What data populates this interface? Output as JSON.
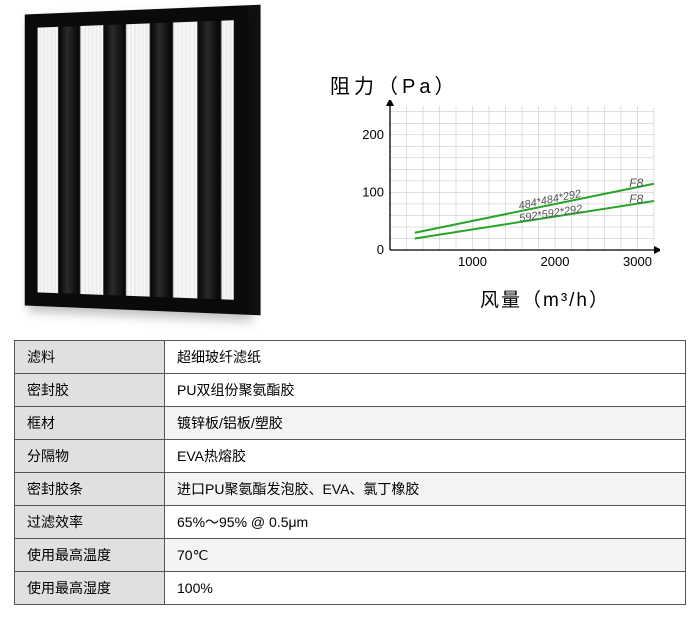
{
  "product_illustration": "v-bank-air-filter",
  "chart": {
    "type": "line",
    "title": "阻力（Pa）",
    "xaxis_label": "风量（m³/h）",
    "xlim": [
      0,
      3200
    ],
    "ylim": [
      0,
      250
    ],
    "xticks": [
      1000,
      2000,
      3000
    ],
    "yticks": [
      0,
      100,
      200
    ],
    "xminor_step": 200,
    "yminor_step": 20,
    "axis_color": "#000000",
    "grid_color": "#bfbfbf",
    "background_color": "#ffffff",
    "title_fontsize": 20,
    "tick_fontsize": 13,
    "lines": [
      {
        "label": "484*484*292",
        "grade": "F8",
        "color": "#29a329",
        "width": 2,
        "points": [
          [
            300,
            30
          ],
          [
            3200,
            115
          ]
        ]
      },
      {
        "label": "592*592*292",
        "grade": "F8",
        "color": "#29a329",
        "width": 2,
        "points": [
          [
            300,
            20
          ],
          [
            3200,
            85
          ]
        ]
      }
    ],
    "annotation_color": "#555555",
    "annotation_fontsize": 11
  },
  "specs": {
    "rows": [
      {
        "key": "滤料",
        "value": "超细玻纤滤纸"
      },
      {
        "key": "密封胶",
        "value": "PU双组份聚氨酯胶"
      },
      {
        "key": "框材",
        "value": "镀锌板/铝板/塑胶"
      },
      {
        "key": "分隔物",
        "value": "EVA热熔胶"
      },
      {
        "key": "密封胶条",
        "value": "进口PU聚氨酯发泡胶、EVA、氯丁橡胶"
      },
      {
        "key": "过滤效率",
        "value": "65%～95% @ 0.5μm"
      },
      {
        "key": "使用最高温度",
        "value": "70℃"
      },
      {
        "key": "使用最高湿度",
        "value": "100%"
      }
    ],
    "key_bg": "#e0e0e0",
    "border_color": "#555555",
    "font_size": 14
  }
}
